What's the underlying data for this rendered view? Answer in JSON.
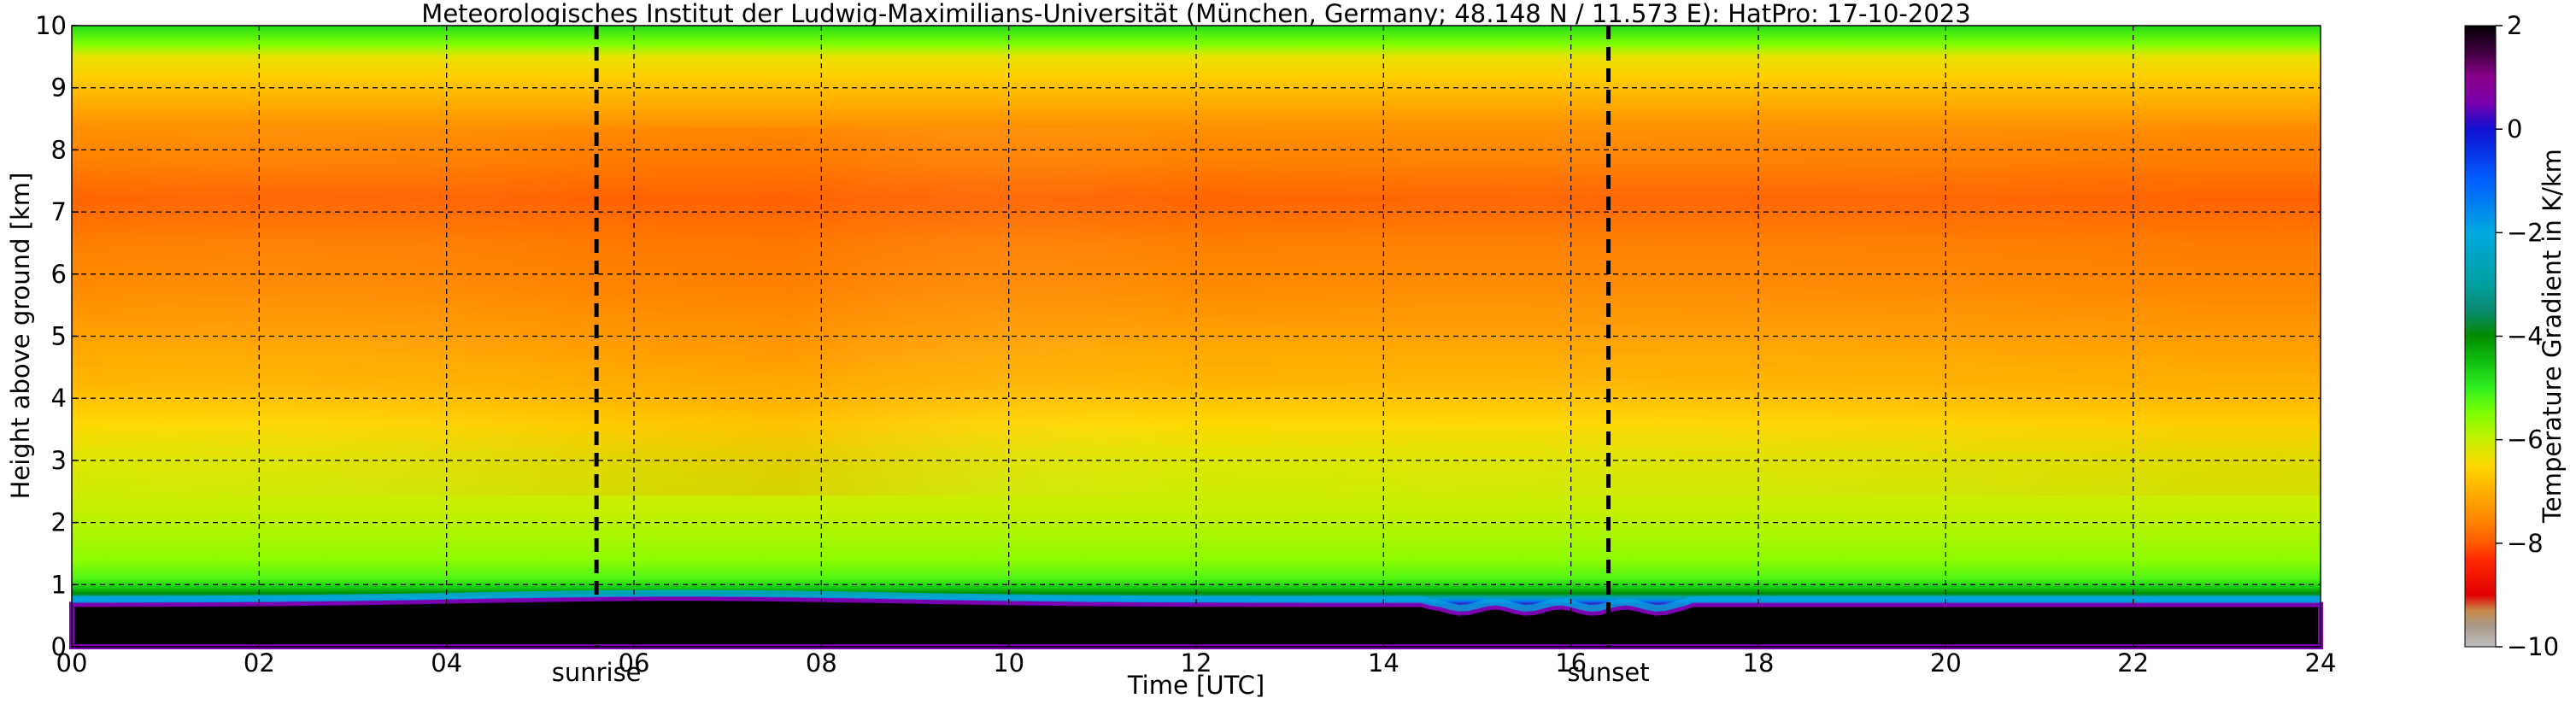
{
  "chart_data": {
    "type": "heatmap",
    "title": "Meteorologisches Institut der Ludwig-Maximilians-Universität (München, Germany; 48.148 N / 11.573 E):    HatPro: 17-10-2023",
    "xlabel": "Time [UTC]",
    "ylabel": "Height above ground [km]",
    "xlim": [
      0,
      24
    ],
    "ylim": [
      0,
      10
    ],
    "x_ticks": [
      {
        "value": 0,
        "label": "00"
      },
      {
        "value": 2,
        "label": "02"
      },
      {
        "value": 4,
        "label": "04"
      },
      {
        "value": 6,
        "label": "06"
      },
      {
        "value": 8,
        "label": "08"
      },
      {
        "value": 10,
        "label": "10"
      },
      {
        "value": 12,
        "label": "12"
      },
      {
        "value": 14,
        "label": "14"
      },
      {
        "value": 16,
        "label": "16"
      },
      {
        "value": 18,
        "label": "18"
      },
      {
        "value": 20,
        "label": "20"
      },
      {
        "value": 22,
        "label": "22"
      },
      {
        "value": 24,
        "label": "24"
      }
    ],
    "y_ticks": [
      {
        "value": 0,
        "label": "0"
      },
      {
        "value": 1,
        "label": "1"
      },
      {
        "value": 2,
        "label": "2"
      },
      {
        "value": 3,
        "label": "3"
      },
      {
        "value": 4,
        "label": "4"
      },
      {
        "value": 5,
        "label": "5"
      },
      {
        "value": 6,
        "label": "6"
      },
      {
        "value": 7,
        "label": "7"
      },
      {
        "value": 8,
        "label": "8"
      },
      {
        "value": 9,
        "label": "9"
      },
      {
        "value": 10,
        "label": "10"
      }
    ],
    "grid": true,
    "events": [
      {
        "label": "sunrise",
        "time": 5.6
      },
      {
        "label": "sunset",
        "time": 16.4
      }
    ],
    "colorbar": {
      "label": "Temperature Gradient in K/km",
      "range": [
        -10,
        2
      ],
      "ticks": [
        {
          "value": 2,
          "label": "2"
        },
        {
          "value": 0,
          "label": "0"
        },
        {
          "value": -2,
          "label": "−2"
        },
        {
          "value": -4,
          "label": "−4"
        },
        {
          "value": -6,
          "label": "−6"
        },
        {
          "value": -8,
          "label": "−8"
        },
        {
          "value": -10,
          "label": "−10"
        }
      ],
      "stops": [
        {
          "value": -10,
          "color": "#bdbdbd"
        },
        {
          "value": -9.6,
          "color": "#a89a8a"
        },
        {
          "value": -9.3,
          "color": "#c98a4a"
        },
        {
          "value": -9.0,
          "color": "#e00000"
        },
        {
          "value": -8.3,
          "color": "#ff2a00"
        },
        {
          "value": -8.0,
          "color": "#ff5a00"
        },
        {
          "value": -7.5,
          "color": "#ff8a00"
        },
        {
          "value": -7.0,
          "color": "#ffb000"
        },
        {
          "value": -6.5,
          "color": "#ffd800"
        },
        {
          "value": -6.0,
          "color": "#c6f000"
        },
        {
          "value": -5.5,
          "color": "#80ff00"
        },
        {
          "value": -5.0,
          "color": "#30f020"
        },
        {
          "value": -4.5,
          "color": "#10c010"
        },
        {
          "value": -4.0,
          "color": "#008c00"
        },
        {
          "value": -3.5,
          "color": "#0a8a70"
        },
        {
          "value": -3.0,
          "color": "#00a0a0"
        },
        {
          "value": -2.0,
          "color": "#00a8e0"
        },
        {
          "value": -1.0,
          "color": "#0060ff"
        },
        {
          "value": 0.0,
          "color": "#1010d0"
        },
        {
          "value": 0.5,
          "color": "#7a00b0"
        },
        {
          "value": 1.0,
          "color": "#8a008a"
        },
        {
          "value": 1.5,
          "color": "#400040"
        },
        {
          "value": 2.0,
          "color": "#000000"
        }
      ]
    },
    "profile": [
      {
        "height_km": 0.0,
        "gradient": 2.0
      },
      {
        "height_km": 0.55,
        "gradient": 2.0
      },
      {
        "height_km": 0.62,
        "gradient": 0.8
      },
      {
        "height_km": 0.68,
        "gradient": 0.2
      },
      {
        "height_km": 0.74,
        "gradient": -1.5
      },
      {
        "height_km": 0.8,
        "gradient": -2.8
      },
      {
        "height_km": 0.86,
        "gradient": -4.0
      },
      {
        "height_km": 0.95,
        "gradient": -4.6
      },
      {
        "height_km": 1.1,
        "gradient": -5.2
      },
      {
        "height_km": 1.4,
        "gradient": -5.6
      },
      {
        "height_km": 1.8,
        "gradient": -5.8
      },
      {
        "height_km": 2.2,
        "gradient": -6.0
      },
      {
        "height_km": 3.0,
        "gradient": -6.2
      },
      {
        "height_km": 3.6,
        "gradient": -6.5
      },
      {
        "height_km": 4.2,
        "gradient": -6.9
      },
      {
        "height_km": 5.0,
        "gradient": -7.2
      },
      {
        "height_km": 5.8,
        "gradient": -7.5
      },
      {
        "height_km": 6.5,
        "gradient": -7.6
      },
      {
        "height_km": 7.2,
        "gradient": -7.9
      },
      {
        "height_km": 7.8,
        "gradient": -7.6
      },
      {
        "height_km": 8.4,
        "gradient": -7.4
      },
      {
        "height_km": 8.8,
        "gradient": -7.0
      },
      {
        "height_km": 9.2,
        "gradient": -6.6
      },
      {
        "height_km": 9.5,
        "gradient": -6.3
      },
      {
        "height_km": 9.7,
        "gradient": -5.5
      },
      {
        "height_km": 10.0,
        "gradient": -4.8
      }
    ]
  }
}
